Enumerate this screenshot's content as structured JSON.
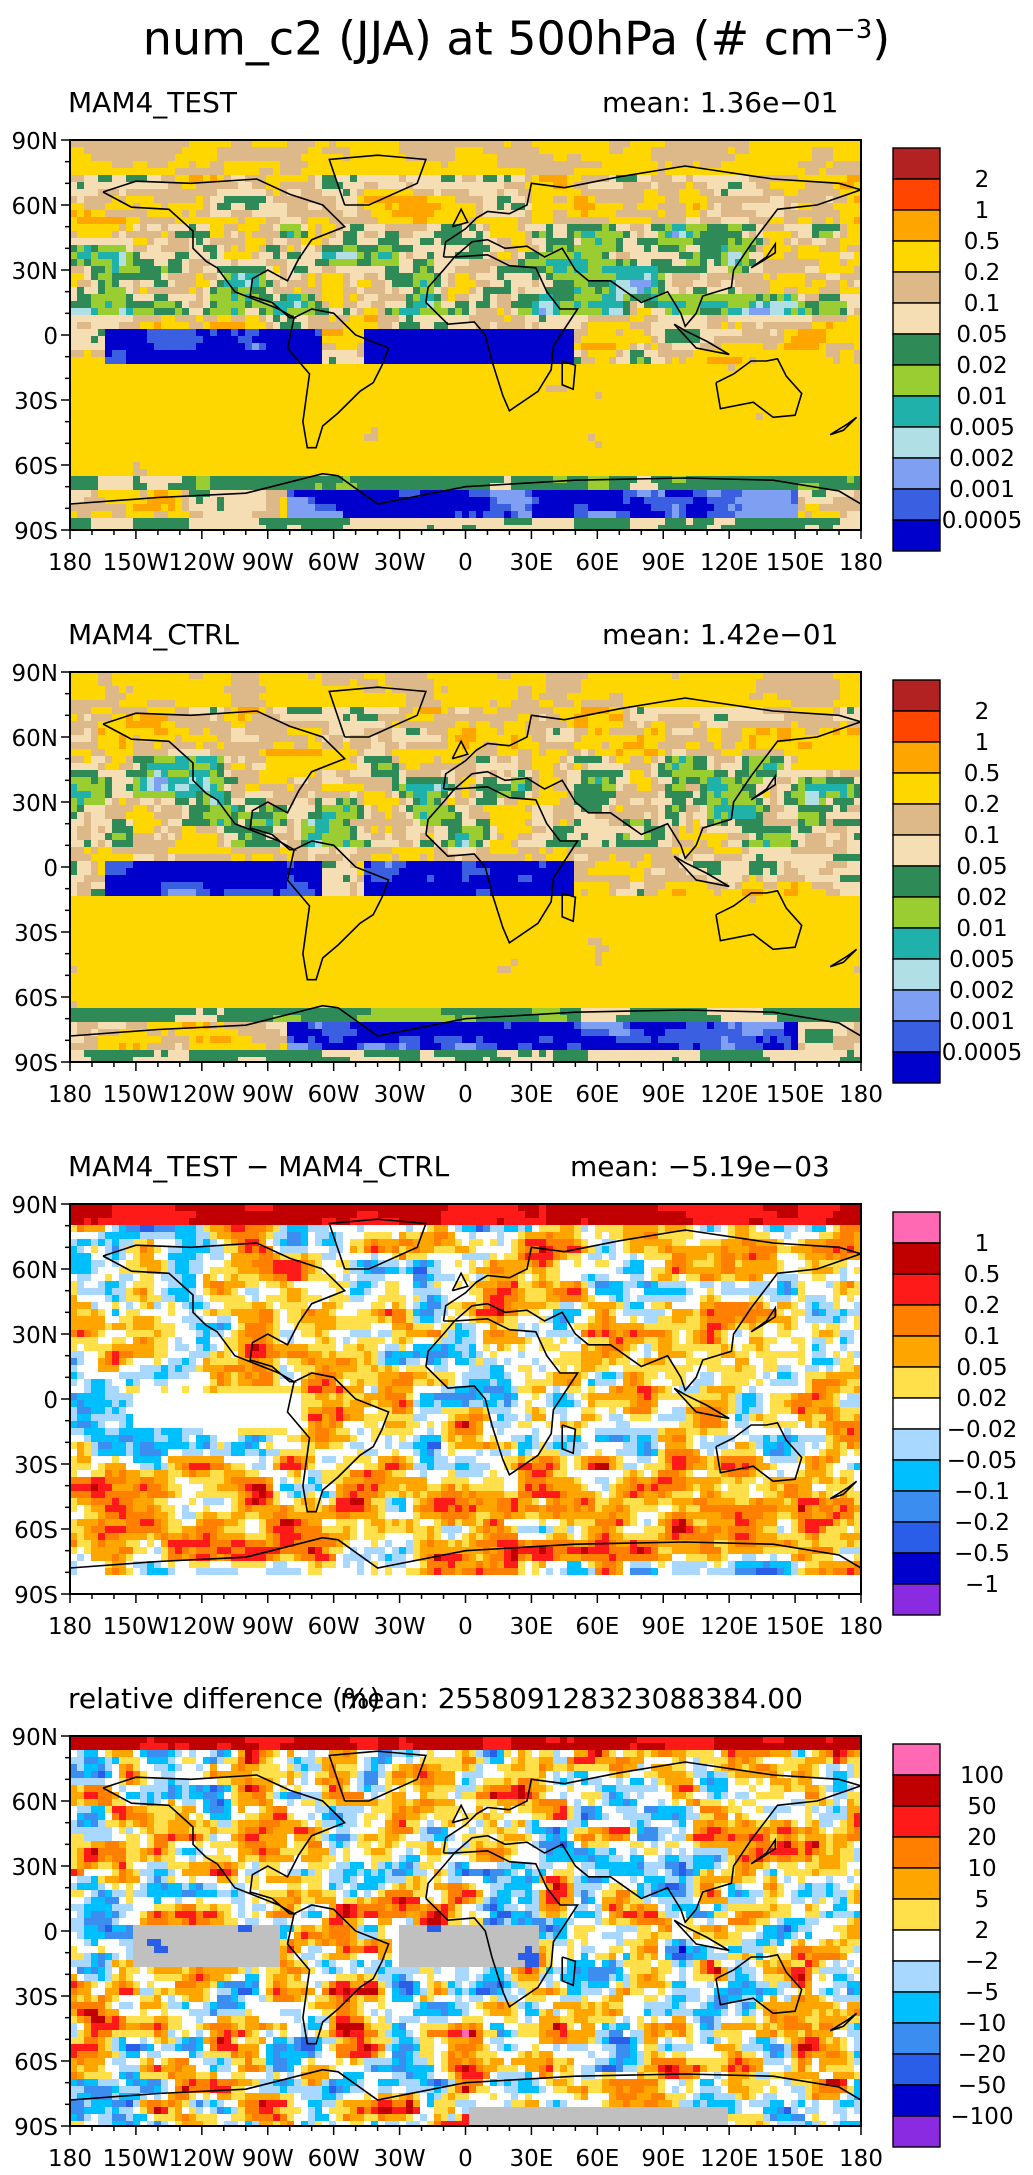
{
  "title": {
    "text": "num_c2 (JJA) at 500hPa (# cm",
    "exponent": "−3",
    "suffix": ")"
  },
  "axes": {
    "lat_ticks": [
      "90N",
      "60N",
      "30N",
      "0",
      "30S",
      "60S",
      "90S"
    ],
    "lon_ticks": [
      "180",
      "150W",
      "120W",
      "90W",
      "60W",
      "30W",
      "0",
      "30E",
      "60E",
      "90E",
      "120E",
      "150E",
      "180"
    ]
  },
  "panels": [
    {
      "name": "MAM4_TEST",
      "mean_label": "mean: 1.36e−01",
      "legend": [
        "2",
        "1",
        "0.5",
        "0.2",
        "0.1",
        "0.05",
        "0.02",
        "0.01",
        "0.005",
        "0.002",
        "0.001",
        "0.0005"
      ]
    },
    {
      "name": "MAM4_CTRL",
      "mean_label": "mean: 1.42e−01",
      "legend": [
        "2",
        "1",
        "0.5",
        "0.2",
        "0.1",
        "0.05",
        "0.02",
        "0.01",
        "0.005",
        "0.002",
        "0.001",
        "0.0005"
      ]
    },
    {
      "name": "MAM4_TEST − MAM4_CTRL",
      "mean_label": "mean: −5.19e−03",
      "legend": [
        "1",
        "0.5",
        "0.2",
        "0.1",
        "0.05",
        "0.02",
        "−0.02",
        "−0.05",
        "−0.1",
        "−0.2",
        "−0.5",
        "−1"
      ]
    },
    {
      "name": "relative difference (%)",
      "mean_label": "mean: 2558091283230883​84.00",
      "legend": [
        "100",
        "50",
        "20",
        "10",
        "5",
        "2",
        "−2",
        "−5",
        "−10",
        "−20",
        "−50",
        "−100"
      ]
    }
  ],
  "colors": {
    "abs_scale": [
      "#0000cd",
      "#3a5fe0",
      "#7fa0f2",
      "#b0e0e6",
      "#20b2aa",
      "#9acd32",
      "#2e8b57",
      "#f5deb3",
      "#ddb98a",
      "#ffd700",
      "#ffa500",
      "#ff4500",
      "#b22222"
    ],
    "diff_scale": [
      "#8a2be2",
      "#0000cd",
      "#2a5de8",
      "#3b8ef0",
      "#00bfff",
      "#a8d8ff",
      "#ffffff",
      "#ffe04a",
      "#ffa500",
      "#ff7f00",
      "#ff1a1a",
      "#c00000",
      "#ff69b4"
    ],
    "missing": "#c0c0c0"
  },
  "chart_data": [
    {
      "type": "heatmap",
      "title": "MAM4_TEST",
      "subtitle": "mean: 1.36e-01",
      "variable": "num_c2 (JJA) at 500hPa (# cm^-3)",
      "x_range": [
        -180,
        180
      ],
      "y_range": [
        -90,
        90
      ],
      "levels": [
        0.0005,
        0.001,
        0.002,
        0.005,
        0.01,
        0.02,
        0.05,
        0.1,
        0.2,
        0.5,
        1,
        2
      ]
    },
    {
      "type": "heatmap",
      "title": "MAM4_CTRL",
      "subtitle": "mean: 1.42e-01",
      "variable": "num_c2 (JJA) at 500hPa (# cm^-3)",
      "x_range": [
        -180,
        180
      ],
      "y_range": [
        -90,
        90
      ],
      "levels": [
        0.0005,
        0.001,
        0.002,
        0.005,
        0.01,
        0.02,
        0.05,
        0.1,
        0.2,
        0.5,
        1,
        2
      ]
    },
    {
      "type": "heatmap",
      "title": "MAM4_TEST - MAM4_CTRL",
      "subtitle": "mean: -5.19e-03",
      "x_range": [
        -180,
        180
      ],
      "y_range": [
        -90,
        90
      ],
      "levels": [
        -1,
        -0.5,
        -0.2,
        -0.1,
        -0.05,
        -0.02,
        0.02,
        0.05,
        0.1,
        0.2,
        0.5,
        1
      ]
    },
    {
      "type": "heatmap",
      "title": "relative difference (%)",
      "subtitle": "mean: 255809128323088384.00",
      "x_range": [
        -180,
        180
      ],
      "y_range": [
        -90,
        90
      ],
      "levels": [
        -100,
        -50,
        -20,
        -10,
        -5,
        -2,
        2,
        5,
        10,
        20,
        50,
        100
      ]
    }
  ]
}
